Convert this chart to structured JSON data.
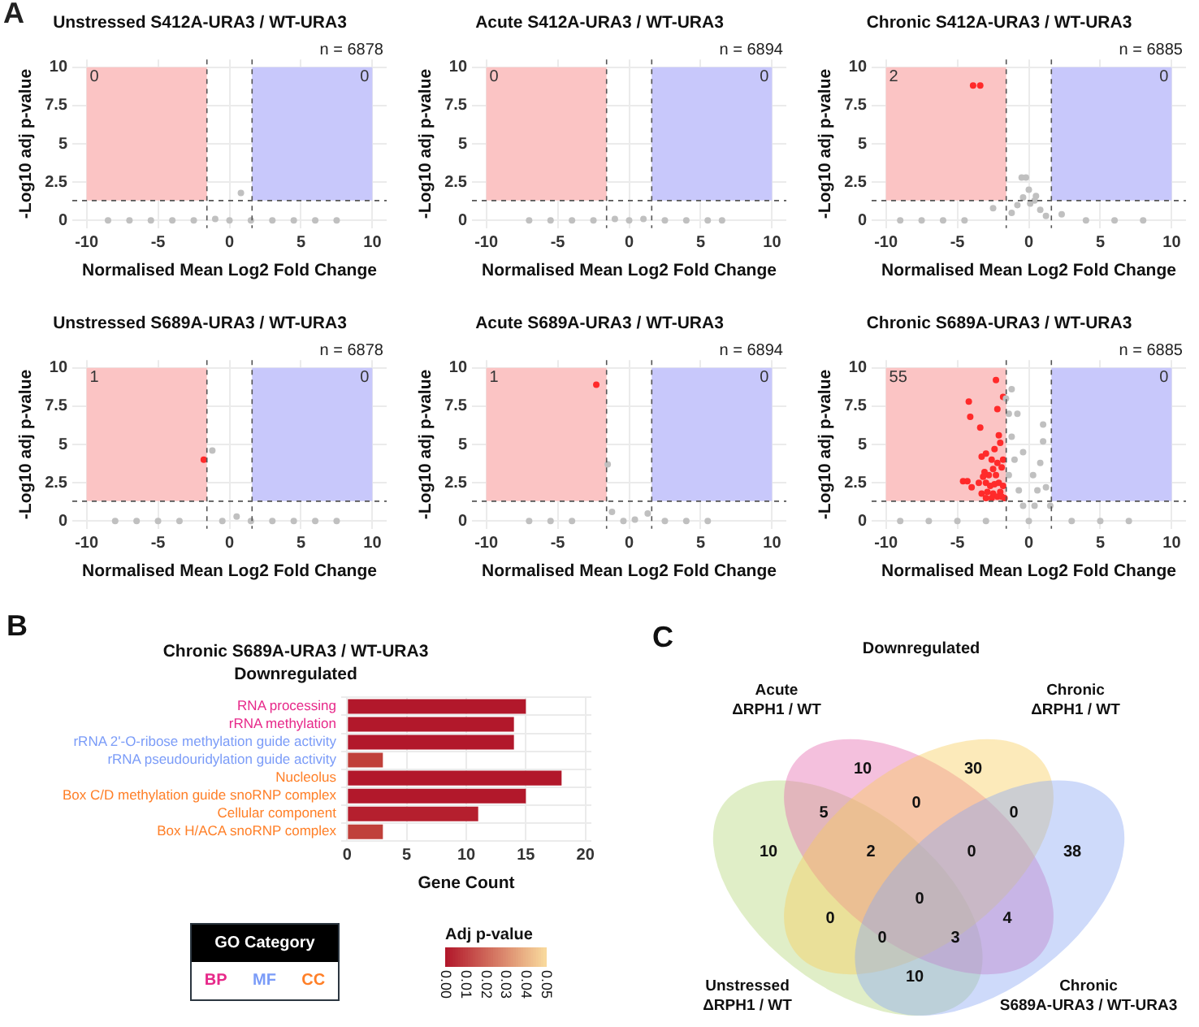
{
  "chart_data": [
    {
      "type": "scatter",
      "title": "Unstressed S412A-URA3 / WT-URA3",
      "xlabel": "Normalised Mean Log2 Fold Change",
      "ylabel": "-Log10 adj p-value",
      "annotations": [
        "A",
        "n = 6878"
      ],
      "xlim": [
        -11,
        11
      ],
      "xticks": [
        -10,
        -5,
        0,
        5,
        10
      ],
      "ylim": [
        -0.5,
        10.5
      ],
      "yticks": [
        0,
        2.5,
        5,
        7.5,
        10
      ],
      "grid": true,
      "marker": "circle",
      "bands": [
        {
          "axis": "x",
          "from": -10,
          "to": -1.58,
          "label": "0",
          "color": "#fbc4c4"
        },
        {
          "axis": "x",
          "from": 1.58,
          "to": 10,
          "label": "0",
          "color": "#c8c8fb"
        }
      ],
      "ref_lines": [
        {
          "axis": "x",
          "value": -1.58,
          "line_style": "dashed"
        },
        {
          "axis": "x",
          "value": 1.58,
          "line_style": "dashed"
        },
        {
          "axis": "y",
          "value": 1.3,
          "line_style": "dashed"
        }
      ],
      "series": [
        {
          "color": "#c0c0c0",
          "x": [
            -8.5,
            -7,
            -5.5,
            -4,
            -2.5,
            -1,
            0,
            0.8,
            1.5,
            3,
            4.5,
            6,
            7.5
          ],
          "values": [
            0,
            0,
            0,
            0,
            0,
            0.1,
            0,
            1.8,
            0,
            0,
            0,
            0,
            0
          ]
        }
      ]
    },
    {
      "type": "scatter",
      "title": "Acute S412A-URA3 / WT-URA3",
      "xlabel": "Normalised Mean Log2 Fold Change",
      "ylabel": "-Log10 adj p-value",
      "annotations": [
        "n = 6894"
      ],
      "xlim": [
        -11,
        11
      ],
      "xticks": [
        -10,
        -5,
        0,
        5,
        10
      ],
      "ylim": [
        -0.5,
        10.5
      ],
      "yticks": [
        0,
        2.5,
        5,
        7.5,
        10
      ],
      "grid": true,
      "marker": "circle",
      "bands": [
        {
          "axis": "x",
          "from": -10,
          "to": -1.58,
          "label": "0",
          "color": "#fbc4c4"
        },
        {
          "axis": "x",
          "from": 1.58,
          "to": 10,
          "label": "0",
          "color": "#c8c8fb"
        }
      ],
      "ref_lines": [
        {
          "axis": "x",
          "value": -1.58,
          "line_style": "dashed"
        },
        {
          "axis": "x",
          "value": 1.58,
          "line_style": "dashed"
        },
        {
          "axis": "y",
          "value": 1.3,
          "line_style": "dashed"
        }
      ],
      "series": [
        {
          "color": "#c0c0c0",
          "x": [
            -7,
            -5.5,
            -4,
            -2.5,
            -1,
            0,
            1,
            2.5,
            4,
            5.5,
            6.5
          ],
          "values": [
            0,
            0,
            0,
            0,
            0.1,
            0,
            0.1,
            0,
            0,
            0,
            0
          ]
        }
      ]
    },
    {
      "type": "scatter",
      "title": "Chronic S412A-URA3 / WT-URA3",
      "xlabel": "Normalised Mean Log2 Fold Change",
      "ylabel": "-Log10 adj p-value",
      "annotations": [
        "n = 6885"
      ],
      "xlim": [
        -11,
        11
      ],
      "xticks": [
        -10,
        -5,
        0,
        5,
        10
      ],
      "ylim": [
        -0.5,
        10.5
      ],
      "yticks": [
        0,
        2.5,
        5,
        7.5,
        10
      ],
      "grid": true,
      "marker": "circle",
      "bands": [
        {
          "axis": "x",
          "from": -10,
          "to": -1.58,
          "label": "2",
          "color": "#fbc4c4"
        },
        {
          "axis": "x",
          "from": 1.58,
          "to": 10,
          "label": "0",
          "color": "#c8c8fb"
        }
      ],
      "ref_lines": [
        {
          "axis": "x",
          "value": -1.58,
          "line_style": "dashed"
        },
        {
          "axis": "x",
          "value": 1.58,
          "line_style": "dashed"
        },
        {
          "axis": "y",
          "value": 1.3,
          "line_style": "dashed"
        }
      ],
      "series": [
        {
          "color": "#c0c0c0",
          "x": [
            -9,
            -7.5,
            -6,
            -4.5,
            -2.5,
            -1.2,
            -0.8,
            -0.4,
            0,
            0.4,
            0.8,
            1.2,
            -0.5,
            -0.2,
            0.1,
            0.5,
            2.3,
            4,
            6,
            8
          ],
          "values": [
            0,
            0,
            0,
            0,
            0.8,
            0.5,
            1,
            1.5,
            2,
            1.3,
            0.7,
            0.3,
            2.8,
            2.8,
            1.1,
            1.6,
            0.4,
            0,
            0,
            0
          ]
        },
        {
          "color": "#ff2a2a",
          "x": [
            -3.9,
            -3.4
          ],
          "values": [
            8.8,
            8.8
          ]
        }
      ]
    },
    {
      "type": "scatter",
      "title": "Unstressed S689A-URA3 / WT-URA3",
      "xlabel": "Normalised Mean Log2 Fold Change",
      "ylabel": "-Log10 adj p-value",
      "annotations": [
        "n = 6878"
      ],
      "xlim": [
        -11,
        11
      ],
      "xticks": [
        -10,
        -5,
        0,
        5,
        10
      ],
      "ylim": [
        -0.5,
        10.5
      ],
      "yticks": [
        0,
        2.5,
        5,
        7.5,
        10
      ],
      "grid": true,
      "marker": "circle",
      "bands": [
        {
          "axis": "x",
          "from": -10,
          "to": -1.58,
          "label": "1",
          "color": "#fbc4c4"
        },
        {
          "axis": "x",
          "from": 1.58,
          "to": 10,
          "label": "0",
          "color": "#c8c8fb"
        }
      ],
      "ref_lines": [
        {
          "axis": "x",
          "value": -1.58,
          "line_style": "dashed"
        },
        {
          "axis": "x",
          "value": 1.58,
          "line_style": "dashed"
        },
        {
          "axis": "y",
          "value": 1.3,
          "line_style": "dashed"
        }
      ],
      "series": [
        {
          "color": "#c0c0c0",
          "x": [
            -8,
            -6.5,
            -5,
            -3.5,
            -1.2,
            -0.5,
            0.5,
            1.5,
            3,
            4.5,
            6,
            7.5
          ],
          "values": [
            0,
            0,
            0,
            0,
            4.6,
            0,
            0.3,
            0,
            0,
            0,
            0,
            0
          ]
        },
        {
          "color": "#ff2a2a",
          "x": [
            -1.8
          ],
          "values": [
            4
          ]
        }
      ]
    },
    {
      "type": "scatter",
      "title": "Acute S689A-URA3 / WT-URA3",
      "xlabel": "Normalised Mean Log2 Fold Change",
      "ylabel": "-Log10 adj p-value",
      "annotations": [
        "n = 6894"
      ],
      "xlim": [
        -11,
        11
      ],
      "xticks": [
        -10,
        -5,
        0,
        5,
        10
      ],
      "ylim": [
        -0.5,
        10.5
      ],
      "yticks": [
        0,
        2.5,
        5,
        7.5,
        10
      ],
      "grid": true,
      "marker": "circle",
      "bands": [
        {
          "axis": "x",
          "from": -10,
          "to": -1.58,
          "label": "1",
          "color": "#fbc4c4"
        },
        {
          "axis": "x",
          "from": 1.58,
          "to": 10,
          "label": "0",
          "color": "#c8c8fb"
        }
      ],
      "ref_lines": [
        {
          "axis": "x",
          "value": -1.58,
          "line_style": "dashed"
        },
        {
          "axis": "x",
          "value": 1.58,
          "line_style": "dashed"
        },
        {
          "axis": "y",
          "value": 1.3,
          "line_style": "dashed"
        }
      ],
      "series": [
        {
          "color": "#c0c0c0",
          "x": [
            -7,
            -5.5,
            -4,
            -1.5,
            -1.2,
            -0.4,
            0.4,
            1.3,
            2.5,
            4,
            5.5
          ],
          "values": [
            0,
            0,
            0,
            3.7,
            0.6,
            0,
            0.1,
            0.5,
            0,
            0,
            0
          ]
        },
        {
          "color": "#ff2a2a",
          "x": [
            -2.3
          ],
          "values": [
            8.9
          ]
        }
      ]
    },
    {
      "type": "scatter",
      "title": "Chronic S689A-URA3 / WT-URA3",
      "xlabel": "Normalised Mean Log2 Fold Change",
      "ylabel": "-Log10 adj p-value",
      "annotations": [
        "n = 6885"
      ],
      "xlim": [
        -11,
        11
      ],
      "xticks": [
        -10,
        -5,
        0,
        5,
        10
      ],
      "ylim": [
        -0.5,
        10.5
      ],
      "yticks": [
        0,
        2.5,
        5,
        7.5,
        10
      ],
      "grid": true,
      "marker": "circle",
      "bands": [
        {
          "axis": "x",
          "from": -10,
          "to": -1.58,
          "label": "55",
          "color": "#fbc4c4"
        },
        {
          "axis": "x",
          "from": 1.58,
          "to": 10,
          "label": "0",
          "color": "#c8c8fb"
        }
      ],
      "ref_lines": [
        {
          "axis": "x",
          "value": -1.58,
          "line_style": "dashed"
        },
        {
          "axis": "x",
          "value": 1.58,
          "line_style": "dashed"
        },
        {
          "axis": "y",
          "value": 1.3,
          "line_style": "dashed"
        }
      ],
      "series": [
        {
          "color": "#c0c0c0",
          "x": [
            0,
            -0.4,
            0.4,
            -0.7,
            0.6,
            -1,
            0.8,
            -1.2,
            1,
            -1.4,
            -1.6,
            -1.2,
            -0.8,
            -0.4,
            0.3,
            1.2,
            1.5,
            -1.4,
            1,
            -9,
            -7,
            -5,
            -3,
            3,
            5,
            7
          ],
          "values": [
            0,
            1,
            1,
            2,
            2,
            4,
            3.8,
            5.5,
            5.2,
            7,
            8,
            8.6,
            7,
            4.5,
            3,
            2.2,
            1,
            3,
            6.3,
            0,
            0,
            0,
            0,
            0,
            0,
            0
          ]
        },
        {
          "color": "#ff2a2a",
          "x": [
            -2.3,
            -4.2,
            -4.1,
            -1.8,
            -2.2,
            -3.4,
            -2.1,
            -2,
            -2.4,
            -3,
            -3.3,
            -2.6,
            -1.8,
            -2.2,
            -1.9,
            -2.5,
            -3.1,
            -2.8,
            -3.2,
            -2.3,
            -4.6,
            -4.3,
            -4,
            -3.5,
            -3,
            -2.7,
            -2.4,
            -2.1,
            -1.8,
            -2,
            -2.5,
            -2.9,
            -3.3,
            -2.2,
            -1.9,
            -1.7,
            -2.6,
            -3
          ],
          "values": [
            9.2,
            7.8,
            6.8,
            8.1,
            7.3,
            6.1,
            5.6,
            5.1,
            4.7,
            4.4,
            4.2,
            4,
            4,
            3.8,
            3.5,
            3.4,
            3.2,
            3,
            2.9,
            3,
            2.6,
            2.6,
            2.2,
            2.5,
            2.5,
            2.3,
            2.4,
            2.5,
            2.3,
            1.9,
            1.8,
            1.9,
            1.8,
            1.6,
            1.6,
            1.5,
            1.5,
            1.5
          ]
        }
      ]
    },
    {
      "type": "bar",
      "orientation": "horizontal",
      "stacked": true,
      "title": "Chronic S689A-URA3 / WT-URA3",
      "subtitle": "Downregulated",
      "xlabel": "Gene Count",
      "legend_title": "GO Category",
      "clabel": "Adj p-value",
      "clim": [
        0,
        0.05
      ],
      "cticks": [
        {
          "value": 0,
          "label": "0.00"
        },
        {
          "value": 0.01,
          "label": "0.01"
        },
        {
          "value": 0.02,
          "label": "0.02"
        },
        {
          "value": 0.03,
          "label": "0.03"
        },
        {
          "value": 0.04,
          "label": "0.04"
        },
        {
          "value": 0.05,
          "label": "0.05"
        }
      ],
      "annotations": [
        "B",
        "BP",
        "MF",
        "CC"
      ],
      "categories": [
        "RNA processing",
        "rRNA methylation",
        "rRNA 2'-O-ribose methylation guide activity",
        "rRNA pseudouridylation guide activity",
        "Nucleolus",
        "Box C/D methylation guide snoRNP complex",
        "Cellular component",
        "Box H/ACA snoRNP complex"
      ],
      "xlim": [
        -0.5,
        20.5
      ],
      "xticks": [
        0,
        5,
        10,
        15,
        20
      ],
      "grid": true,
      "series": [
        {
          "color": "#e7298a",
          "values": [
            15,
            14,
            null,
            null,
            null,
            null,
            null,
            null
          ],
          "colors": [
            "#b2182b",
            "#b2182b",
            null,
            null,
            null,
            null,
            null,
            null
          ]
        },
        {
          "color": "#7b9cf8",
          "values": [
            null,
            null,
            14,
            3,
            null,
            null,
            null,
            null
          ],
          "colors": [
            null,
            null,
            "#b2182b",
            "#c0403a",
            null,
            null,
            null,
            null
          ]
        },
        {
          "color": "#ff7f27",
          "values": [
            null,
            null,
            null,
            null,
            18,
            15,
            11,
            3
          ],
          "colors": [
            null,
            null,
            null,
            null,
            "#b2182b",
            "#b2182b",
            "#b51f2e",
            "#c0403a"
          ]
        }
      ]
    },
    {
      "type": "other",
      "title": "Downregulated",
      "annotations": [
        "C",
        "Unstressed\nΔRPH1 / WT",
        "Acute\nΔRPH1 / WT",
        "Chronic\nΔRPH1 / WT",
        "Chronic\nS689A-URA3 / WT-URA3",
        "10",
        "10",
        "30",
        "38",
        "5",
        "0",
        "10",
        "0",
        "4",
        "0",
        "2",
        "3",
        "0",
        "0",
        "0"
      ]
    }
  ]
}
